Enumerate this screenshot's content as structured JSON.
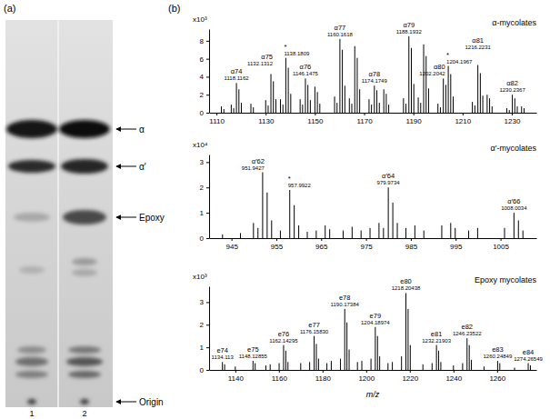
{
  "chart_data": [
    {
      "type": "tlc",
      "panel": "(a)",
      "lanes": [
        "1",
        "2"
      ],
      "bands": [
        "α",
        "α′",
        "Epoxy",
        "Origin"
      ]
    },
    {
      "type": "spectrum",
      "panel": "(b)",
      "title": "α-mycolates",
      "ylabel": "x10³",
      "xlim": [
        1107,
        1240
      ],
      "ylim": [
        0,
        9.3
      ],
      "xticks": [
        1110,
        1130,
        1150,
        1170,
        1190,
        1210,
        1230
      ],
      "yticks": [
        0,
        2,
        4,
        6,
        8
      ],
      "x": [
        1112,
        1113,
        1116,
        1117,
        1118.1162,
        1119.12,
        1120.12,
        1124,
        1125,
        1130,
        1131,
        1132.1312,
        1133.13,
        1134.14,
        1136,
        1137,
        1138.1809,
        1139.18,
        1140.19,
        1144,
        1145,
        1146.1475,
        1147.15,
        1148.15,
        1150,
        1151,
        1152,
        1158,
        1159,
        1160.1618,
        1161.16,
        1162.17,
        1164,
        1165,
        1166.2,
        1167.2,
        1168.2,
        1172,
        1173,
        1174.1749,
        1175.18,
        1176.18,
        1178,
        1179,
        1180,
        1186,
        1187,
        1188.1932,
        1189.2,
        1190.2,
        1192,
        1193,
        1194.2,
        1195.2,
        1196.2,
        1200,
        1201,
        1202.2042,
        1203.2,
        1204.1967,
        1205.2,
        1206.2,
        1214,
        1215,
        1216.2231,
        1217.23,
        1218.23,
        1220,
        1221,
        1222,
        1228,
        1229,
        1230.2367,
        1231.24,
        1232.24,
        1234,
        1235
      ],
      "values": [
        0.7,
        0.4,
        0.9,
        0.5,
        3.3,
        2.6,
        1.1,
        1.0,
        0.6,
        1.4,
        0.8,
        4.3,
        3.5,
        1.5,
        1.5,
        0.9,
        6.1,
        5.0,
        2.1,
        1.5,
        0.9,
        3.8,
        3.1,
        1.4,
        2.9,
        2.3,
        1.0,
        1.8,
        1.1,
        8.2,
        7.0,
        3.0,
        1.6,
        1.0,
        7.4,
        6.1,
        2.6,
        1.5,
        0.9,
        3.0,
        2.5,
        1.1,
        2.6,
        2.1,
        0.9,
        1.6,
        1.0,
        8.5,
        7.2,
        3.2,
        1.7,
        1.1,
        7.6,
        6.3,
        2.7,
        1.0,
        0.6,
        3.8,
        3.1,
        5.2,
        4.3,
        1.8,
        1.2,
        0.8,
        5.3,
        4.4,
        1.9,
        2.0,
        1.6,
        0.7,
        0.5,
        0.3,
        2.0,
        1.6,
        0.7,
        0.7,
        0.5
      ],
      "color": "#000000",
      "annotations": [
        {
          "x": 1118.1162,
          "name": "α74",
          "label": "1118.1162"
        },
        {
          "x": 1132.1312,
          "name": "α75",
          "label": "1132.1312"
        },
        {
          "x": 1138.1809,
          "name": "*",
          "label": "1138.1809"
        },
        {
          "x": 1146.1475,
          "name": "α76",
          "label": "1146.1475"
        },
        {
          "x": 1160.1618,
          "name": "α77",
          "label": "1160.1618"
        },
        {
          "x": 1174.1749,
          "name": "α78",
          "label": "1174.1749"
        },
        {
          "x": 1188.1932,
          "name": "α79",
          "label": "1188.1932"
        },
        {
          "x": 1202.2042,
          "name": "α80",
          "label": "1202.2042"
        },
        {
          "x": 1204.1967,
          "name": "*",
          "label": "1204.1967"
        },
        {
          "x": 1216.2231,
          "name": "α81",
          "label": "1216.2231"
        },
        {
          "x": 1230.2367,
          "name": "α82",
          "label": "1230.2367"
        }
      ]
    },
    {
      "type": "spectrum",
      "title": "α′-mycolates",
      "ylabel": "x10⁴",
      "xlim": [
        940,
        1013
      ],
      "ylim": [
        0,
        3.3
      ],
      "xticks": [
        945,
        955,
        965,
        975,
        985,
        995,
        1005
      ],
      "yticks": [
        0,
        1,
        2,
        3
      ],
      "x": [
        943,
        947,
        949.9,
        950.9,
        951.9427,
        952.95,
        953.95,
        955.9,
        957.9922,
        958.99,
        959.99,
        961.9,
        963.9,
        965.9,
        966.9,
        969.9,
        971.9,
        973.9,
        975.9,
        977.9,
        978.9,
        979.9734,
        980.98,
        981.98,
        983.9,
        985.9,
        987.9,
        991.9,
        993.9,
        994.9,
        997.9,
        999.9,
        1005.9,
        1008.0034,
        1009.0,
        1010.0
      ],
      "values": [
        0.15,
        0.2,
        0.6,
        0.4,
        2.6,
        1.8,
        0.7,
        0.3,
        1.9,
        1.3,
        0.5,
        0.25,
        0.3,
        0.5,
        0.35,
        0.3,
        0.45,
        0.3,
        0.4,
        0.6,
        0.4,
        2.0,
        1.4,
        0.6,
        0.4,
        0.5,
        0.3,
        0.5,
        0.6,
        0.4,
        0.3,
        0.4,
        0.4,
        1.0,
        0.7,
        0.3
      ],
      "color": "#000000",
      "annotations": [
        {
          "x": 951.9427,
          "name": "α′62",
          "label": "951.9427"
        },
        {
          "x": 957.9922,
          "name": "*",
          "label": "957.9922"
        },
        {
          "x": 979.9734,
          "name": "α′64",
          "label": "979.9734"
        },
        {
          "x": 1008.0034,
          "name": "α′66",
          "label": "1008.0034"
        }
      ]
    },
    {
      "type": "spectrum",
      "title": "Epoxy mycolates",
      "ylabel": "x10³",
      "xlabel": "m/z",
      "xlim": [
        1128,
        1278
      ],
      "ylim": [
        0,
        3.7
      ],
      "xticks": [
        1140,
        1160,
        1180,
        1200,
        1220,
        1240,
        1260
      ],
      "yticks": [
        0,
        1,
        2,
        3
      ],
      "x": [
        1134.113,
        1135.12,
        1140,
        1148.12855,
        1149.13,
        1154,
        1156,
        1160.1,
        1162.14295,
        1163.15,
        1164.15,
        1170,
        1174.1,
        1176.1583,
        1177.16,
        1178.16,
        1182,
        1184,
        1188.2,
        1190.17384,
        1191.18,
        1192.18,
        1196,
        1198,
        1202.2,
        1204.18974,
        1205.19,
        1206.19,
        1210,
        1212,
        1216.2,
        1218.20438,
        1219.21,
        1220.21,
        1226,
        1230.2,
        1232.21903,
        1233.22,
        1234.22,
        1240,
        1244.2,
        1246.23522,
        1247.24,
        1248.24,
        1254,
        1260.24849,
        1261.25,
        1268,
        1274.26549,
        1275.27
      ],
      "values": [
        0.35,
        0.25,
        0.15,
        0.4,
        0.3,
        0.2,
        0.25,
        0.3,
        1.1,
        0.85,
        0.35,
        0.3,
        0.35,
        1.5,
        1.15,
        0.5,
        0.3,
        0.4,
        0.5,
        2.7,
        2.1,
        0.9,
        0.35,
        0.4,
        0.5,
        1.9,
        1.5,
        0.6,
        0.3,
        0.35,
        0.6,
        3.4,
        2.7,
        1.1,
        0.25,
        0.3,
        1.1,
        0.85,
        0.35,
        0.2,
        0.3,
        1.4,
        1.1,
        0.45,
        0.15,
        0.4,
        0.3,
        0.1,
        0.3,
        0.2
      ],
      "color": "#000000",
      "annotations": [
        {
          "x": 1134.113,
          "name": "e74",
          "label": "1134.113"
        },
        {
          "x": 1148.12855,
          "name": "e75",
          "label": "1148.12855"
        },
        {
          "x": 1162.14295,
          "name": "e76",
          "label": "1162.14295"
        },
        {
          "x": 1176.1583,
          "name": "e77",
          "label": "1176.15830"
        },
        {
          "x": 1190.17384,
          "name": "e78",
          "label": "1190.17384"
        },
        {
          "x": 1204.18974,
          "name": "e79",
          "label": "1204.18974"
        },
        {
          "x": 1218.20438,
          "name": "e80",
          "label": "1218.20438"
        },
        {
          "x": 1232.21903,
          "name": "e81",
          "label": "1232.21903"
        },
        {
          "x": 1246.23522,
          "name": "e82",
          "label": "1246.23522"
        },
        {
          "x": 1260.24849,
          "name": "e83",
          "label": "1260.24849"
        },
        {
          "x": 1274.26549,
          "name": "e84",
          "label": "1274.26549"
        }
      ]
    }
  ]
}
